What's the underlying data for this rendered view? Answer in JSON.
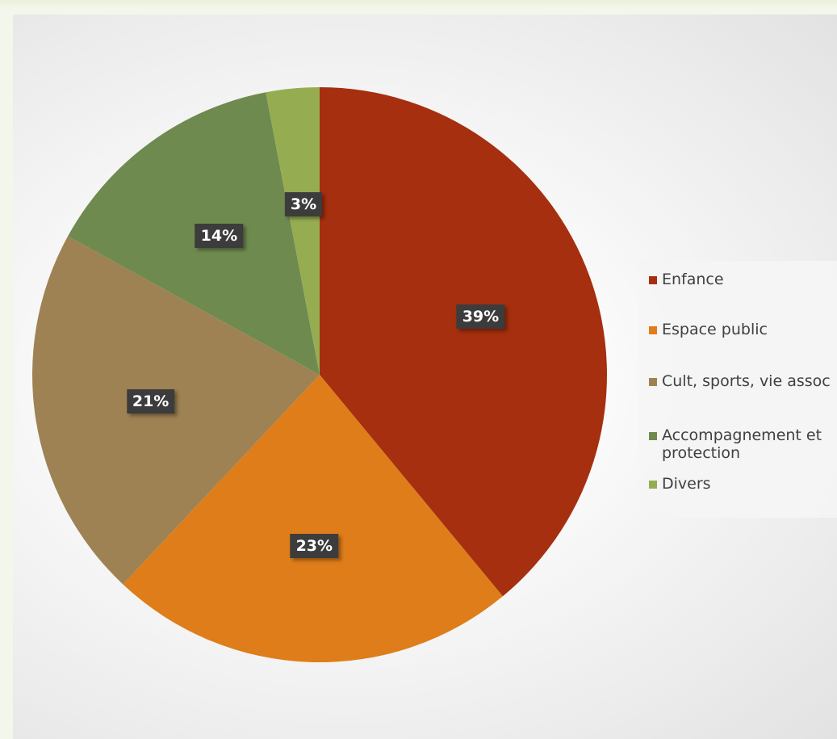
{
  "chart_data": {
    "type": "pie",
    "title": "",
    "start_angle": 0,
    "direction": "clockwise",
    "legend_position": "right",
    "slices": [
      {
        "label": "Enfance",
        "value": 39,
        "display": "39%",
        "color": "#a52f0e"
      },
      {
        "label": "Espace public",
        "value": 23,
        "display": "23%",
        "color": "#de7d19"
      },
      {
        "label": "Cult, sports, vie assoc",
        "value": 21,
        "display": "21%",
        "color": "#9e8253"
      },
      {
        "label": "Accompagnement et protection",
        "value": 14,
        "display": "14%",
        "color": "#6f8a4f"
      },
      {
        "label": "Divers",
        "value": 3,
        "display": "3%",
        "color": "#95ad50"
      }
    ]
  }
}
